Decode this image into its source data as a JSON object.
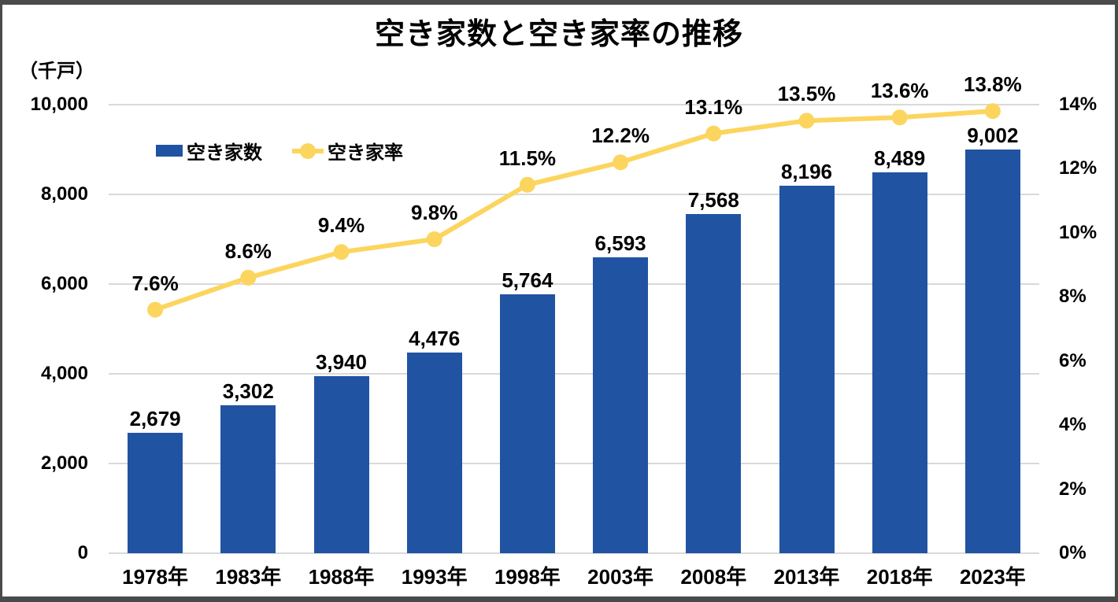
{
  "chart_data": {
    "type": "bar+line",
    "title": "空き家数と空き家率の推移",
    "categories": [
      "1978年",
      "1983年",
      "1988年",
      "1993年",
      "1998年",
      "2003年",
      "2008年",
      "2013年",
      "2018年",
      "2023年"
    ],
    "series": [
      {
        "name": "空き家数",
        "type": "bar",
        "axis": "left",
        "values": [
          2679,
          3302,
          3940,
          4476,
          5764,
          6593,
          7568,
          8196,
          8489,
          9002
        ],
        "labels": [
          "2,679",
          "3,302",
          "3,940",
          "4,476",
          "5,764",
          "6,593",
          "7,568",
          "8,196",
          "8,489",
          "9,002"
        ]
      },
      {
        "name": "空き家率",
        "type": "line",
        "axis": "right",
        "values": [
          7.6,
          8.6,
          9.4,
          9.8,
          11.5,
          12.2,
          13.1,
          13.5,
          13.6,
          13.8
        ],
        "labels": [
          "7.6%",
          "8.6%",
          "9.4%",
          "9.8%",
          "11.5%",
          "12.2%",
          "13.1%",
          "13.5%",
          "13.6%",
          "13.8%"
        ]
      }
    ],
    "left_axis": {
      "unit": "（千戸）",
      "min": 0,
      "max": 10000,
      "step": 2000,
      "tick_labels": [
        "0",
        "2,000",
        "4,000",
        "6,000",
        "8,000",
        "10,000"
      ]
    },
    "right_axis": {
      "min": 0,
      "max": 14,
      "step": 2,
      "tick_labels": [
        "0%",
        "2%",
        "4%",
        "6%",
        "8%",
        "10%",
        "12%",
        "14%"
      ]
    },
    "grid": true,
    "legend_position": "top-left-inside",
    "colors": {
      "bar": "#2153A3",
      "line": "#FCD55F",
      "grid": "#D9D9D9",
      "text": "#000000",
      "frame_border": "#4A4A4A"
    }
  }
}
